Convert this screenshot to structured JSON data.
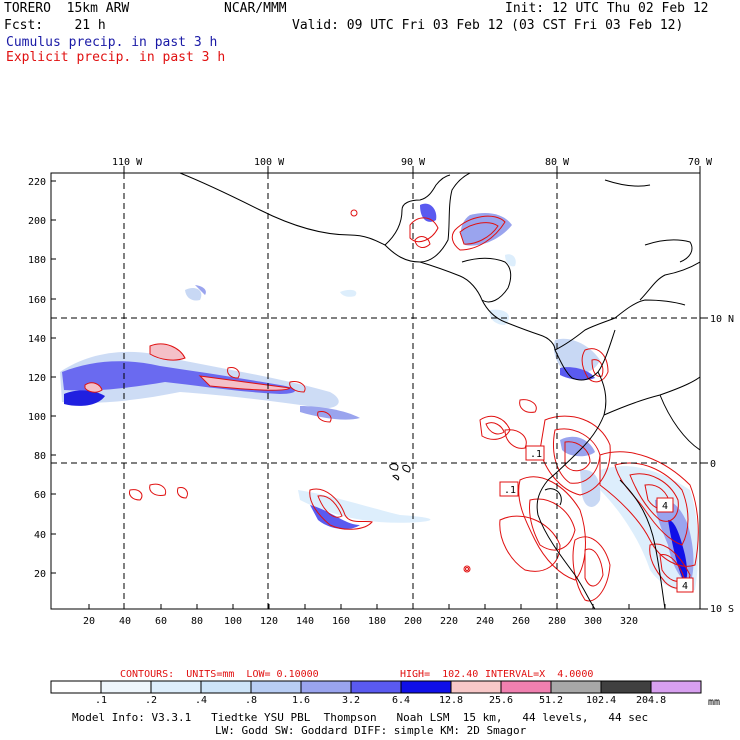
{
  "header": {
    "model": "TORERO  15km ARW",
    "org": "NCAR/MMM",
    "init": "Init: 12 UTC Thu 02 Feb 12",
    "fcst": "Fcst:    21 h",
    "valid": "Valid: 09 UTC Fri 03 Feb 12 (03 CST Fri 03 Feb 12)",
    "cumulus": "Cumulus precip. in past 3 h",
    "explicit": "Explicit precip. in past 3 h"
  },
  "map": {
    "top_lon_labels": [
      "110 W",
      "100 W",
      "90 W",
      "80 W",
      "70 W"
    ],
    "right_lat_labels": [
      "10 N",
      "0",
      "10 S"
    ],
    "y_ticks": [
      "220",
      "200",
      "180",
      "160",
      "140",
      "120",
      "100",
      "80",
      "60",
      "40",
      "20"
    ],
    "x_ticks": [
      "20",
      "40",
      "60",
      "80",
      "100",
      "120",
      "140",
      "160",
      "180",
      "200",
      "220",
      "240",
      "260",
      "280",
      "300",
      "320"
    ],
    "box_labels": [
      ".1",
      ".1",
      "4",
      "4"
    ]
  },
  "contours_line": {
    "contours": "CONTOURS:  UNITS=mm  LOW= 0.10000",
    "high": "HIGH=  102.40",
    "interval": "INTERVAL=X  4.0000"
  },
  "colorbar": {
    "labels": [
      ".1",
      ".2",
      ".4",
      ".8",
      "1.6",
      "3.2",
      "6.4",
      "12.8",
      "25.6",
      "51.2",
      "102.4",
      "204.8"
    ],
    "colors": [
      "#ffffff",
      "#eef6fc",
      "#ddeefc",
      "#cde4f8",
      "#b8cdf4",
      "#9aa4ee",
      "#5a5af0",
      "#1010e8",
      "#f8c8c8",
      "#f080b0",
      "#a8a8a8",
      "#404040",
      "#d8a0f0"
    ],
    "unit": "mm"
  },
  "footer": {
    "line1": "Model Info: V3.3.1   Tiedtke YSU PBL  Thompson   Noah LSM  15 km,   44 levels,   44 sec",
    "line2": "LW: Godd SW: Goddard DIFF: simple KM: 2D Smagor"
  }
}
